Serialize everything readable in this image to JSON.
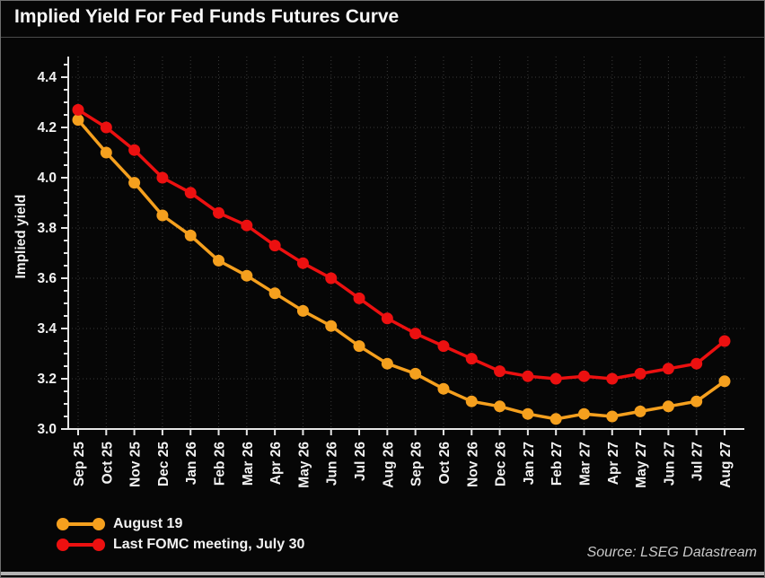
{
  "title": "Implied Yield For Fed Funds Futures Curve",
  "source": "Source: LSEG Datastream",
  "chart_data": {
    "type": "line",
    "title": "Implied Yield For Fed Funds Futures Curve",
    "xlabel": "",
    "ylabel": "Implied yield",
    "ylim": [
      3.0,
      4.45
    ],
    "yticks": [
      3.0,
      3.2,
      3.4,
      3.6,
      3.8,
      4.0,
      4.2,
      4.4
    ],
    "minor_tick_step": 0.05,
    "grid": true,
    "legend_position": "bottom-left",
    "categories": [
      "Sep 25",
      "Oct 25",
      "Nov 25",
      "Dec 25",
      "Jan 26",
      "Feb 26",
      "Mar 26",
      "Apr 26",
      "May 26",
      "Jun 26",
      "Jul 26",
      "Aug 26",
      "Sep 26",
      "Oct 26",
      "Nov 26",
      "Dec 26",
      "Jan 27",
      "Feb 27",
      "Mar 27",
      "Apr 27",
      "May 27",
      "Jun 27",
      "Jul 27",
      "Aug 27"
    ],
    "series": [
      {
        "name": "August 19",
        "color": "#F5A01E",
        "values": [
          4.23,
          4.1,
          3.98,
          3.85,
          3.77,
          3.67,
          3.61,
          3.54,
          3.47,
          3.41,
          3.33,
          3.26,
          3.22,
          3.16,
          3.11,
          3.09,
          3.06,
          3.04,
          3.06,
          3.05,
          3.07,
          3.09,
          3.11,
          3.19
        ]
      },
      {
        "name": "Last FOMC meeting, July 30",
        "color": "#EC1010",
        "values": [
          4.27,
          4.2,
          4.11,
          4.0,
          3.94,
          3.86,
          3.81,
          3.73,
          3.66,
          3.6,
          3.52,
          3.44,
          3.38,
          3.33,
          3.28,
          3.23,
          3.21,
          3.2,
          3.21,
          3.2,
          3.22,
          3.24,
          3.26,
          3.35
        ]
      }
    ]
  },
  "colors": {
    "background": "#060606",
    "axis": "#e6e6e6",
    "grid": "#3a3a3a",
    "text": "#f2f2f2",
    "source_text": "#c9c9c9"
  }
}
